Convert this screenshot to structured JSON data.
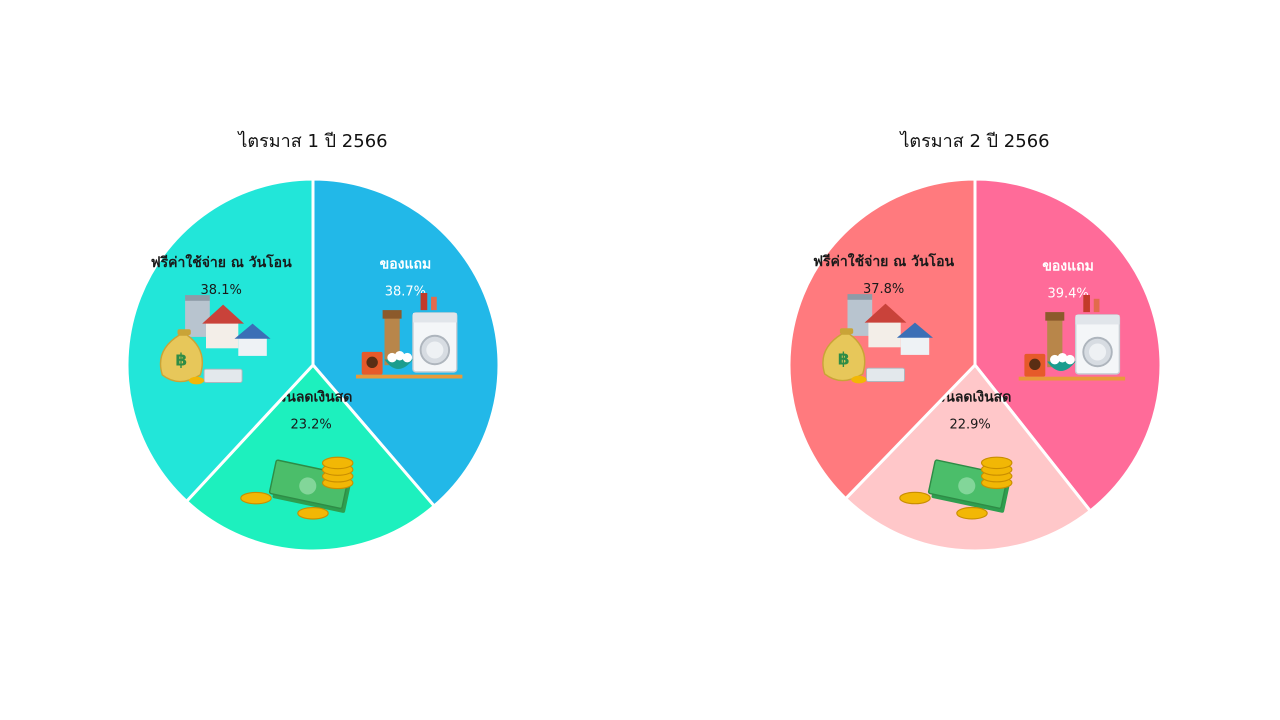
{
  "chart_data": [
    {
      "type": "pie",
      "title": "ไตรมาส 1 ปี 2566",
      "slices": [
        {
          "label": "ของแถม",
          "value": 38.7,
          "value_label": "38.7%",
          "color": "#22B8E8",
          "text_color": "#ffffff",
          "icon": "appliances-icon"
        },
        {
          "label": "ส่วนลดเงินสด",
          "value": 23.2,
          "value_label": "23.2%",
          "color": "#1DF0BE",
          "text_color": "#1a1a1a",
          "icon": "cash-coins-icon"
        },
        {
          "label": "ฟรีค่าใช้จ่าย ณ วันโอน",
          "value": 38.1,
          "value_label": "38.1%",
          "color": "#22E6D9",
          "text_color": "#1a1a1a",
          "icon": "property-money-icon"
        }
      ]
    },
    {
      "type": "pie",
      "title": "ไตรมาส 2 ปี 2566",
      "slices": [
        {
          "label": "ของแถม",
          "value": 39.4,
          "value_label": "39.4%",
          "color": "#FF6B99",
          "text_color": "#ffffff",
          "icon": "appliances-icon"
        },
        {
          "label": "ส่วนลดเงินสด",
          "value": 22.9,
          "value_label": "22.9%",
          "color": "#FFC7C9",
          "text_color": "#1a1a1a",
          "icon": "cash-coins-icon"
        },
        {
          "label": "ฟรีค่าใช้จ่าย ณ วันโอน",
          "value": 37.8,
          "value_label": "37.8%",
          "color": "#FF7A7E",
          "text_color": "#1a1a1a",
          "icon": "property-money-icon"
        }
      ]
    }
  ]
}
